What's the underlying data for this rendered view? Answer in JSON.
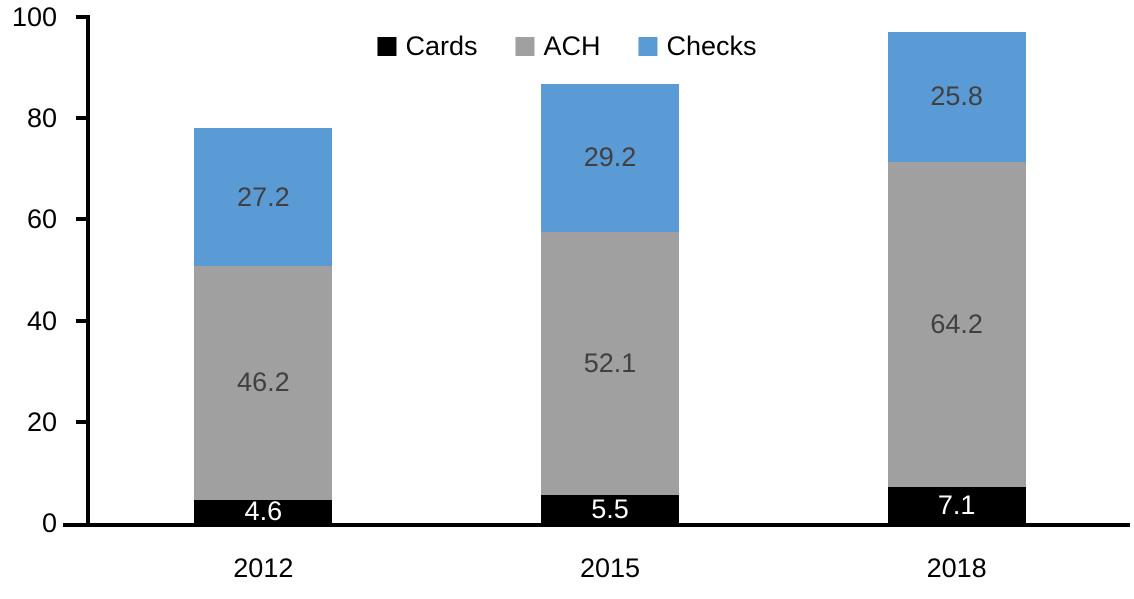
{
  "chart_data": {
    "type": "bar",
    "stacked": true,
    "title": "",
    "categories": [
      "2012",
      "2015",
      "2018"
    ],
    "series": [
      {
        "name": "Cards",
        "color": "#000000",
        "label_color": "#ffffff",
        "values": [
          4.6,
          5.5,
          7.1
        ]
      },
      {
        "name": "ACH",
        "color": "#a0a0a0",
        "label_color": "#404040",
        "values": [
          46.2,
          52.1,
          64.2
        ]
      },
      {
        "name": "Checks",
        "color": "#5b9bd5",
        "label_color": "#404040",
        "values": [
          27.2,
          29.2,
          25.8
        ]
      }
    ],
    "y_axis": {
      "min": 0,
      "max": 100,
      "tick_interval": 20,
      "ticks": [
        0,
        20,
        40,
        60,
        80,
        100
      ]
    },
    "x_axis": {
      "labels": [
        "2012",
        "2015",
        "2018"
      ]
    },
    "legend": {
      "position": "top",
      "entries": [
        "Cards",
        "ACH",
        "Checks"
      ]
    },
    "grid": false,
    "axis_color": "#000000",
    "background_color": "#ffffff"
  }
}
